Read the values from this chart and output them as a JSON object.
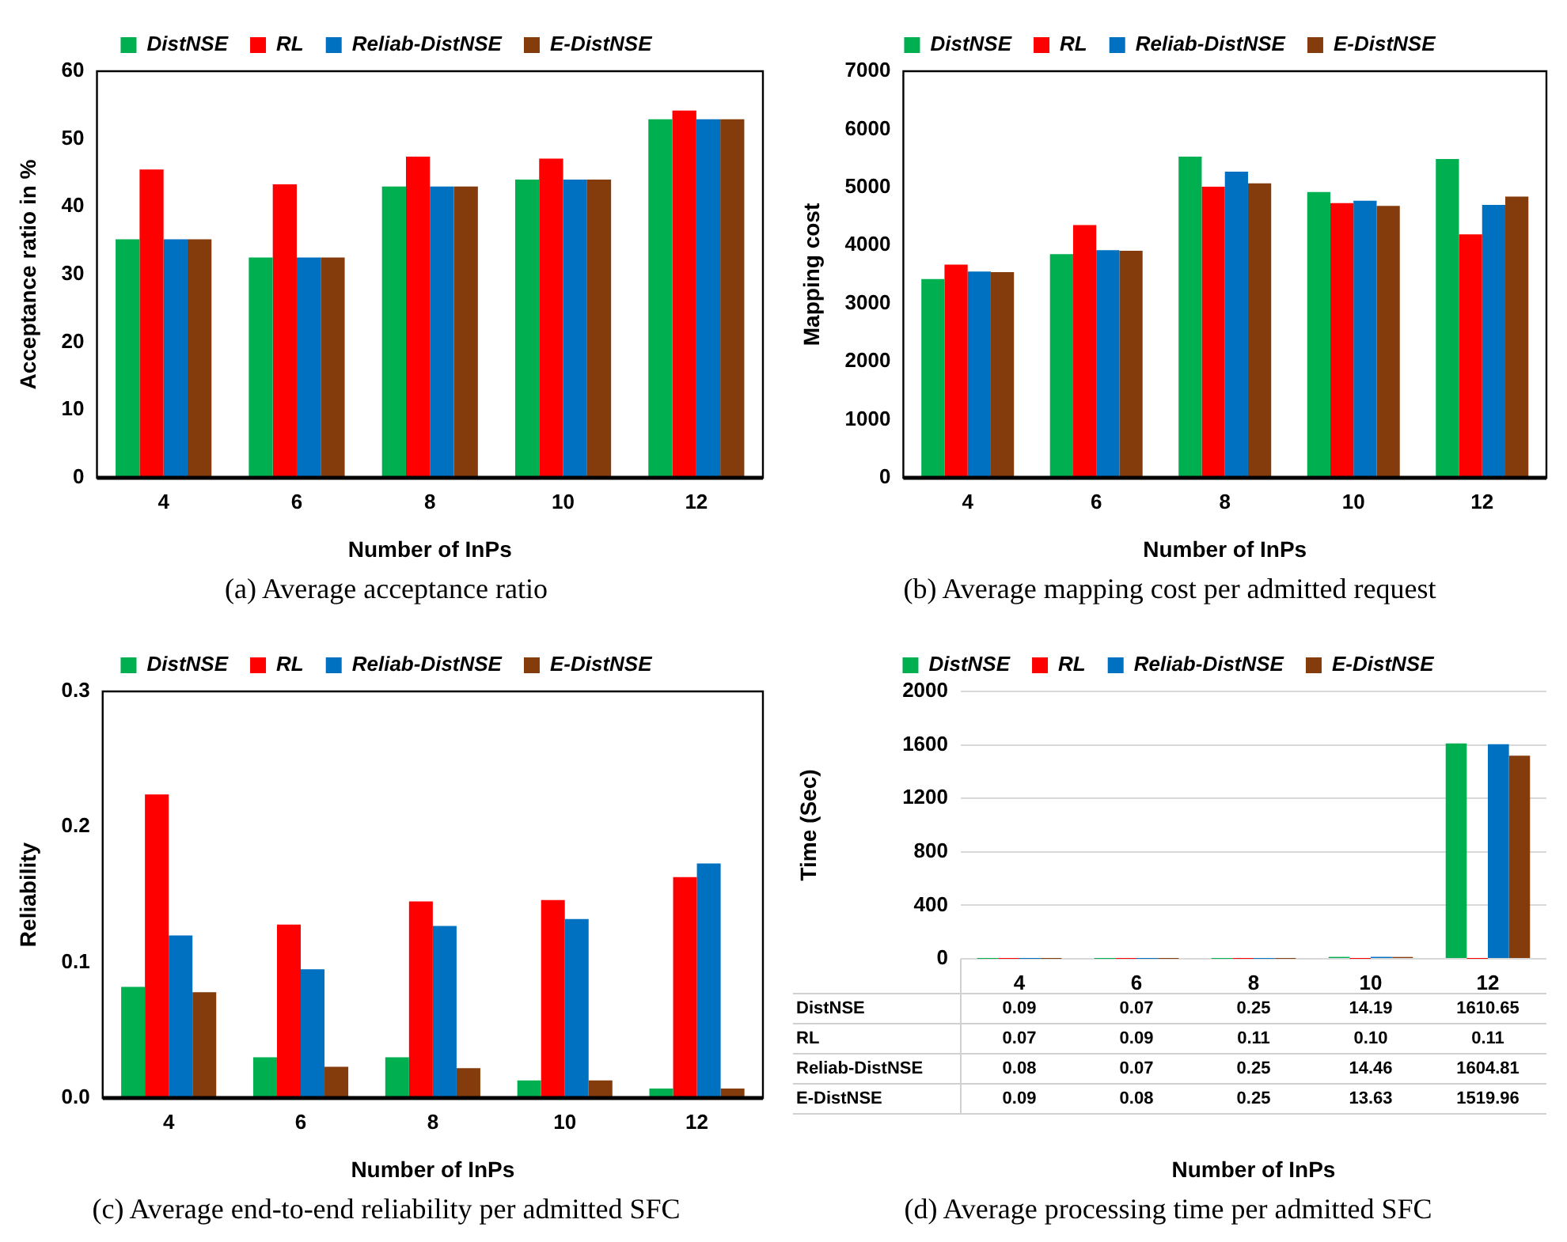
{
  "chart_data": [
    {
      "type": "bar",
      "title": "(a) Average acceptance ratio",
      "xlabel": "Number of InPs",
      "ylabel": "Acceptance ratio in %",
      "categories": [
        "4",
        "6",
        "8",
        "10",
        "12"
      ],
      "ylim": [
        0,
        60
      ],
      "yticks": [
        0,
        10,
        20,
        30,
        40,
        50,
        60
      ],
      "legend": "top",
      "grid": false,
      "series": [
        {
          "name": "DistNSE",
          "color": "#00b050",
          "values": [
            35.2,
            32.5,
            43.0,
            44.0,
            52.9
          ]
        },
        {
          "name": "RL",
          "color": "#ff0000",
          "values": [
            45.5,
            43.3,
            47.4,
            47.1,
            54.2
          ]
        },
        {
          "name": "Reliab-DistNSE",
          "color": "#0070c0",
          "values": [
            35.2,
            32.5,
            43.0,
            44.0,
            52.9
          ]
        },
        {
          "name": "E-DistNSE",
          "color": "#843c0c",
          "values": [
            35.2,
            32.5,
            43.0,
            44.0,
            52.9
          ]
        }
      ]
    },
    {
      "type": "bar",
      "title": "(b) Average mapping cost per admitted request",
      "xlabel": "Number of InPs",
      "ylabel": "Mapping cost",
      "categories": [
        "4",
        "6",
        "8",
        "10",
        "12"
      ],
      "ylim": [
        0,
        7000
      ],
      "yticks": [
        0,
        1000,
        2000,
        3000,
        4000,
        5000,
        6000,
        7000
      ],
      "legend": "top",
      "grid": false,
      "series": [
        {
          "name": "DistNSE",
          "color": "#00b050",
          "values": [
            3420,
            3850,
            5530,
            4920,
            5490
          ]
        },
        {
          "name": "RL",
          "color": "#ff0000",
          "values": [
            3670,
            4350,
            5010,
            4730,
            4190
          ]
        },
        {
          "name": "Reliab-DistNSE",
          "color": "#0070c0",
          "values": [
            3550,
            3920,
            5270,
            4770,
            4700
          ]
        },
        {
          "name": "E-DistNSE",
          "color": "#843c0c",
          "values": [
            3540,
            3910,
            5070,
            4680,
            4840
          ]
        }
      ]
    },
    {
      "type": "bar",
      "title": "(c) Average end-to-end reliability per admitted SFC",
      "xlabel": "Number of InPs",
      "ylabel": "Reliability",
      "categories": [
        "4",
        "6",
        "8",
        "10",
        "12"
      ],
      "ylim": [
        0,
        0.3
      ],
      "yticks": [
        {
          "value": 0,
          "label": "0.0"
        },
        0.1,
        0.2,
        0.3
      ],
      "legend": "top",
      "grid": false,
      "series": [
        {
          "name": "DistNSE",
          "color": "#00b050",
          "values": [
            0.082,
            0.03,
            0.03,
            0.013,
            0.007
          ]
        },
        {
          "name": "RL",
          "color": "#ff0000",
          "values": [
            0.224,
            0.128,
            0.145,
            0.146,
            0.163
          ]
        },
        {
          "name": "Reliab-DistNSE",
          "color": "#0070c0",
          "values": [
            0.12,
            0.095,
            0.127,
            0.132,
            0.173
          ]
        },
        {
          "name": "E-DistNSE",
          "color": "#843c0c",
          "values": [
            0.078,
            0.023,
            0.022,
            0.013,
            0.007
          ]
        }
      ]
    },
    {
      "type": "bar",
      "title": "(d) Average processing time per admitted SFC",
      "xlabel": "Number of InPs",
      "ylabel": "Time (Sec)",
      "categories": [
        "4",
        "6",
        "8",
        "10",
        "12"
      ],
      "ylim": [
        0,
        2000
      ],
      "yticks": [
        0,
        400,
        800,
        1200,
        1600,
        2000
      ],
      "legend": "top",
      "grid": "y",
      "series": [
        {
          "name": "DistNSE",
          "color": "#00b050",
          "values": [
            0.09,
            0.07,
            0.25,
            14.19,
            1610.65
          ],
          "value_labels": [
            "0.09",
            "0.07",
            "0.25",
            "14.19",
            "1610.65"
          ]
        },
        {
          "name": "RL",
          "color": "#ff0000",
          "values": [
            0.07,
            0.09,
            0.11,
            0.1,
            0.11
          ],
          "value_labels": [
            "0.07",
            "0.09",
            "0.11",
            "0.10",
            "0.11"
          ]
        },
        {
          "name": "Reliab-DistNSE",
          "color": "#0070c0",
          "values": [
            0.08,
            0.07,
            0.25,
            14.46,
            1604.81
          ],
          "value_labels": [
            "0.08",
            "0.07",
            "0.25",
            "14.46",
            "1604.81"
          ]
        },
        {
          "name": "E-DistNSE",
          "color": "#843c0c",
          "values": [
            0.09,
            0.08,
            0.25,
            13.63,
            1519.96
          ],
          "value_labels": [
            "0.09",
            "0.08",
            "0.25",
            "13.63",
            "1519.96"
          ]
        }
      ]
    }
  ]
}
